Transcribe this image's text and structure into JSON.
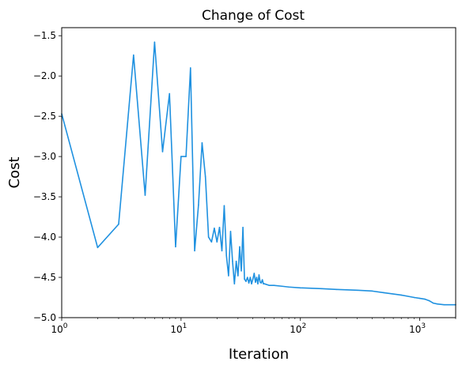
{
  "chart_data": {
    "type": "line",
    "title": "Change of Cost",
    "xlabel": "Iteration",
    "ylabel": "Cost",
    "x_scale": "log",
    "xlim": [
      1,
      2000
    ],
    "ylim": [
      -5.0,
      -1.4
    ],
    "grid": false,
    "line_color": "#1f91e0",
    "x_ticks": [
      {
        "value": 1,
        "base": "10",
        "exp": "0"
      },
      {
        "value": 10,
        "base": "10",
        "exp": "1"
      },
      {
        "value": 100,
        "base": "10",
        "exp": "2"
      },
      {
        "value": 1000,
        "base": "10",
        "exp": "3"
      }
    ],
    "y_ticks": [
      {
        "value": -1.5,
        "label": "−1.5"
      },
      {
        "value": -2.0,
        "label": "−2.0"
      },
      {
        "value": -2.5,
        "label": "−2.5"
      },
      {
        "value": -3.0,
        "label": "−3.0"
      },
      {
        "value": -3.5,
        "label": "−3.5"
      },
      {
        "value": -4.0,
        "label": "−4.0"
      },
      {
        "value": -4.5,
        "label": "−4.5"
      },
      {
        "value": -5.0,
        "label": "−5.0"
      }
    ],
    "series": [
      {
        "x": [
          1,
          2,
          3,
          4,
          5,
          6,
          7,
          8,
          9,
          10,
          11,
          12,
          13,
          14,
          15,
          16,
          17,
          18,
          19,
          20,
          21,
          22,
          23,
          24,
          25,
          26,
          27,
          28,
          29,
          30,
          31,
          32,
          33,
          34,
          35,
          36,
          37,
          38,
          39,
          40,
          41,
          42,
          43,
          44,
          45,
          46,
          47,
          48,
          49,
          50,
          55,
          60,
          70,
          80,
          100,
          150,
          200,
          300,
          400,
          500,
          700,
          900,
          1000,
          1100,
          1200,
          1300,
          1400,
          1600,
          2000
        ],
        "y": [
          -2.47,
          -4.13,
          -3.84,
          -1.74,
          -3.48,
          -1.58,
          -2.94,
          -2.22,
          -4.12,
          -3.0,
          -3.0,
          -1.9,
          -4.17,
          -3.6,
          -2.83,
          -3.25,
          -4.0,
          -4.06,
          -3.89,
          -4.06,
          -3.88,
          -4.17,
          -3.61,
          -4.23,
          -4.48,
          -3.93,
          -4.3,
          -4.58,
          -4.3,
          -4.48,
          -4.12,
          -4.42,
          -3.88,
          -4.52,
          -4.55,
          -4.5,
          -4.57,
          -4.5,
          -4.58,
          -4.52,
          -4.45,
          -4.56,
          -4.5,
          -4.58,
          -4.47,
          -4.56,
          -4.57,
          -4.53,
          -4.58,
          -4.58,
          -4.6,
          -4.6,
          -4.61,
          -4.62,
          -4.63,
          -4.64,
          -4.65,
          -4.66,
          -4.67,
          -4.69,
          -4.72,
          -4.75,
          -4.76,
          -4.77,
          -4.79,
          -4.82,
          -4.83,
          -4.84,
          -4.84
        ]
      }
    ]
  }
}
